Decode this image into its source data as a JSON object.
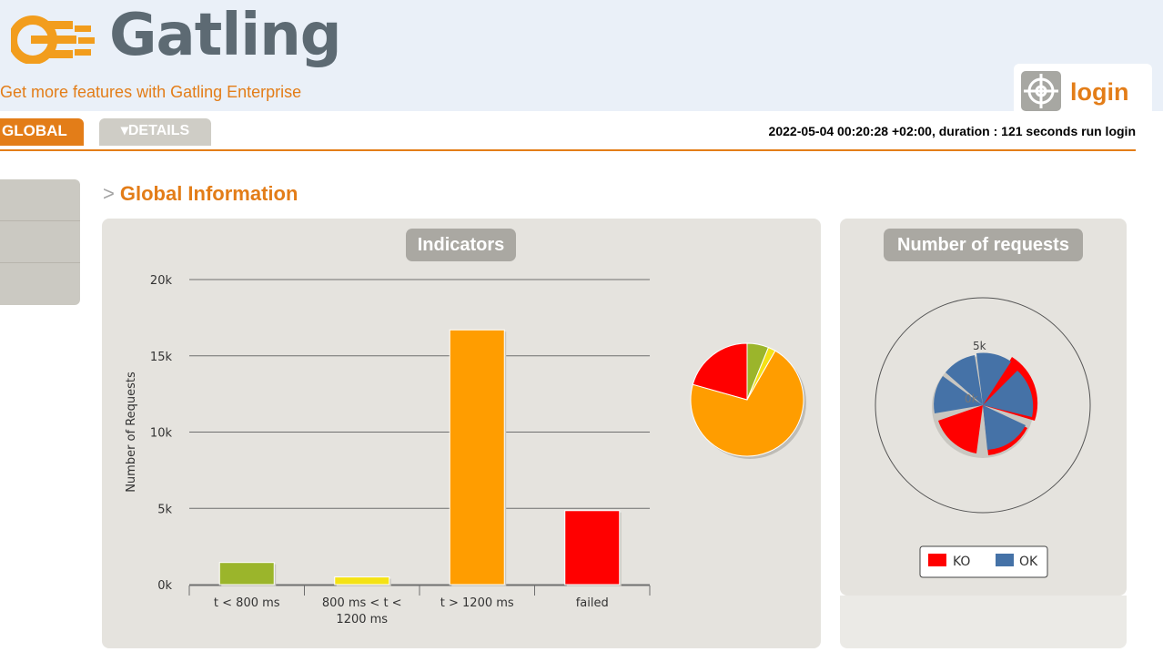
{
  "header": {
    "logo_text": "Gatling",
    "enterprise_link": "Get more features with Gatling Enterprise",
    "login_label": "login"
  },
  "tabs": {
    "global": "GLOBAL",
    "details": "DETAILS"
  },
  "run_info": "2022-05-04 00:20:28 +02:00, duration : 121 seconds run login",
  "section": {
    "title": "Global Information"
  },
  "indicators": {
    "title": "Indicators"
  },
  "requests": {
    "title": "Number of requests",
    "legend_ko": "KO",
    "legend_ok": "OK"
  },
  "colors": {
    "accent": "#e37d18",
    "ok": "#4572a7",
    "ko": "#ff0000"
  },
  "chart_data": [
    {
      "type": "bar",
      "title": "Indicators",
      "ylabel": "Number of Requests",
      "categories": [
        "t < 800 ms",
        "800 ms < t < 1200 ms",
        "t > 1200 ms",
        "failed"
      ],
      "category_lines": [
        [
          "t < 800 ms"
        ],
        [
          "800 ms < t <",
          "1200 ms"
        ],
        [
          "t > 1200 ms"
        ],
        [
          "failed"
        ]
      ],
      "values": [
        1450,
        500,
        16700,
        4850
      ],
      "colors": [
        "#9bb52b",
        "#f4e215",
        "#ff9d00",
        "#ff0000"
      ],
      "ylim": [
        0,
        20000
      ],
      "yticks": [
        0,
        5000,
        10000,
        15000,
        20000
      ],
      "ytick_labels": [
        "0k",
        "5k",
        "10k",
        "15k",
        "20k"
      ],
      "grid": true
    },
    {
      "type": "pie",
      "title": "Indicators",
      "labels": [
        "t < 800 ms",
        "800 ms < t < 1200 ms",
        "t > 1200 ms",
        "failed"
      ],
      "values": [
        1450,
        500,
        16700,
        4850
      ],
      "colors": [
        "#9bb52b",
        "#f4e215",
        "#ff9d00",
        "#ff0000"
      ]
    }
  ]
}
